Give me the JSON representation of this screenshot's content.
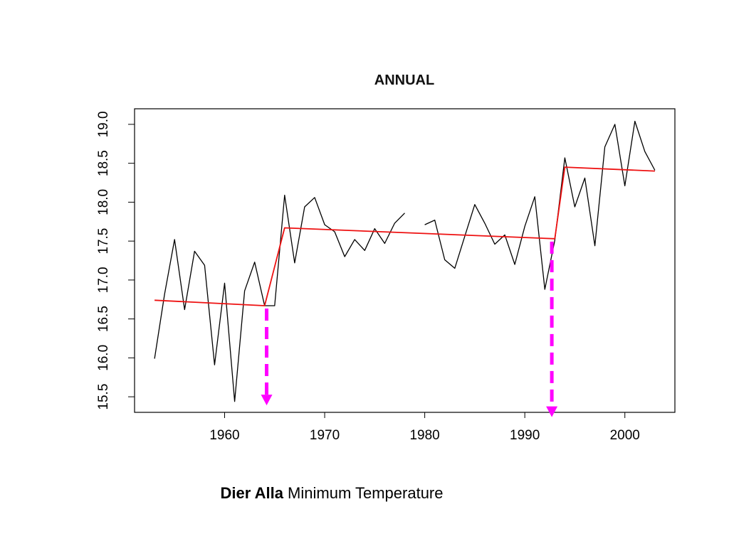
{
  "chart_data": {
    "type": "line",
    "title": "ANNUAL",
    "xlabel": "",
    "ylabel": "",
    "xlim": [
      1951,
      2005
    ],
    "ylim": [
      15.3,
      19.2
    ],
    "x_ticks": [
      "1960",
      "1970",
      "1980",
      "1990",
      "2000"
    ],
    "y_ticks": [
      "15.5",
      "16.0",
      "16.5",
      "17.0",
      "17.5",
      "18.0",
      "18.5",
      "19.0"
    ],
    "grid": false,
    "legend": "none",
    "series": [
      {
        "color": "#000000",
        "segments": [
          [
            [
              1953,
              15.99
            ],
            [
              1954,
              16.82
            ],
            [
              1955,
              17.52
            ],
            [
              1956,
              16.62
            ],
            [
              1957,
              17.37
            ],
            [
              1958,
              17.19
            ],
            [
              1959,
              15.91
            ],
            [
              1960,
              16.96
            ],
            [
              1961,
              15.44
            ],
            [
              1962,
              16.86
            ],
            [
              1963,
              17.23
            ],
            [
              1964,
              16.67
            ],
            [
              1965,
              16.67
            ],
            [
              1966,
              18.09
            ],
            [
              1967,
              17.22
            ],
            [
              1968,
              17.94
            ],
            [
              1969,
              18.06
            ],
            [
              1970,
              17.71
            ],
            [
              1971,
              17.62
            ],
            [
              1972,
              17.3
            ],
            [
              1973,
              17.52
            ],
            [
              1974,
              17.38
            ],
            [
              1975,
              17.66
            ],
            [
              1976,
              17.47
            ],
            [
              1977,
              17.73
            ],
            [
              1978,
              17.86
            ]
          ],
          [
            [
              1980,
              17.71
            ],
            [
              1981,
              17.77
            ],
            [
              1982,
              17.26
            ],
            [
              1983,
              17.15
            ],
            [
              1984,
              17.56
            ],
            [
              1985,
              17.97
            ],
            [
              1986,
              17.73
            ],
            [
              1987,
              17.46
            ],
            [
              1988,
              17.58
            ],
            [
              1989,
              17.2
            ],
            [
              1990,
              17.69
            ],
            [
              1991,
              18.07
            ],
            [
              1992,
              16.88
            ],
            [
              1993,
              17.51
            ],
            [
              1994,
              18.57
            ],
            [
              1995,
              17.94
            ],
            [
              1996,
              18.31
            ],
            [
              1997,
              17.44
            ],
            [
              1998,
              18.71
            ],
            [
              1999,
              19.0
            ],
            [
              2000,
              18.21
            ],
            [
              2001,
              19.04
            ],
            [
              2002,
              18.65
            ],
            [
              2003,
              18.41
            ]
          ]
        ]
      },
      {
        "color": "#ee1111",
        "segments": [
          [
            [
              1953,
              16.74
            ],
            [
              1964,
              16.67
            ],
            [
              1966,
              17.67
            ],
            [
              1993,
              17.53
            ],
            [
              1994,
              18.45
            ],
            [
              2003,
              18.4
            ]
          ]
        ]
      }
    ],
    "annotations": [
      {
        "type": "arrow",
        "color": "#ff00ff",
        "x": 1964.2,
        "y_from": 16.67,
        "y_to": 15.39
      },
      {
        "type": "arrow",
        "color": "#ff00ff",
        "x": 1992.7,
        "y_from": 17.53,
        "y_to": 15.24
      }
    ]
  },
  "caption": {
    "bold": "Dier Alla",
    "rest": " Minimum Temperature"
  }
}
